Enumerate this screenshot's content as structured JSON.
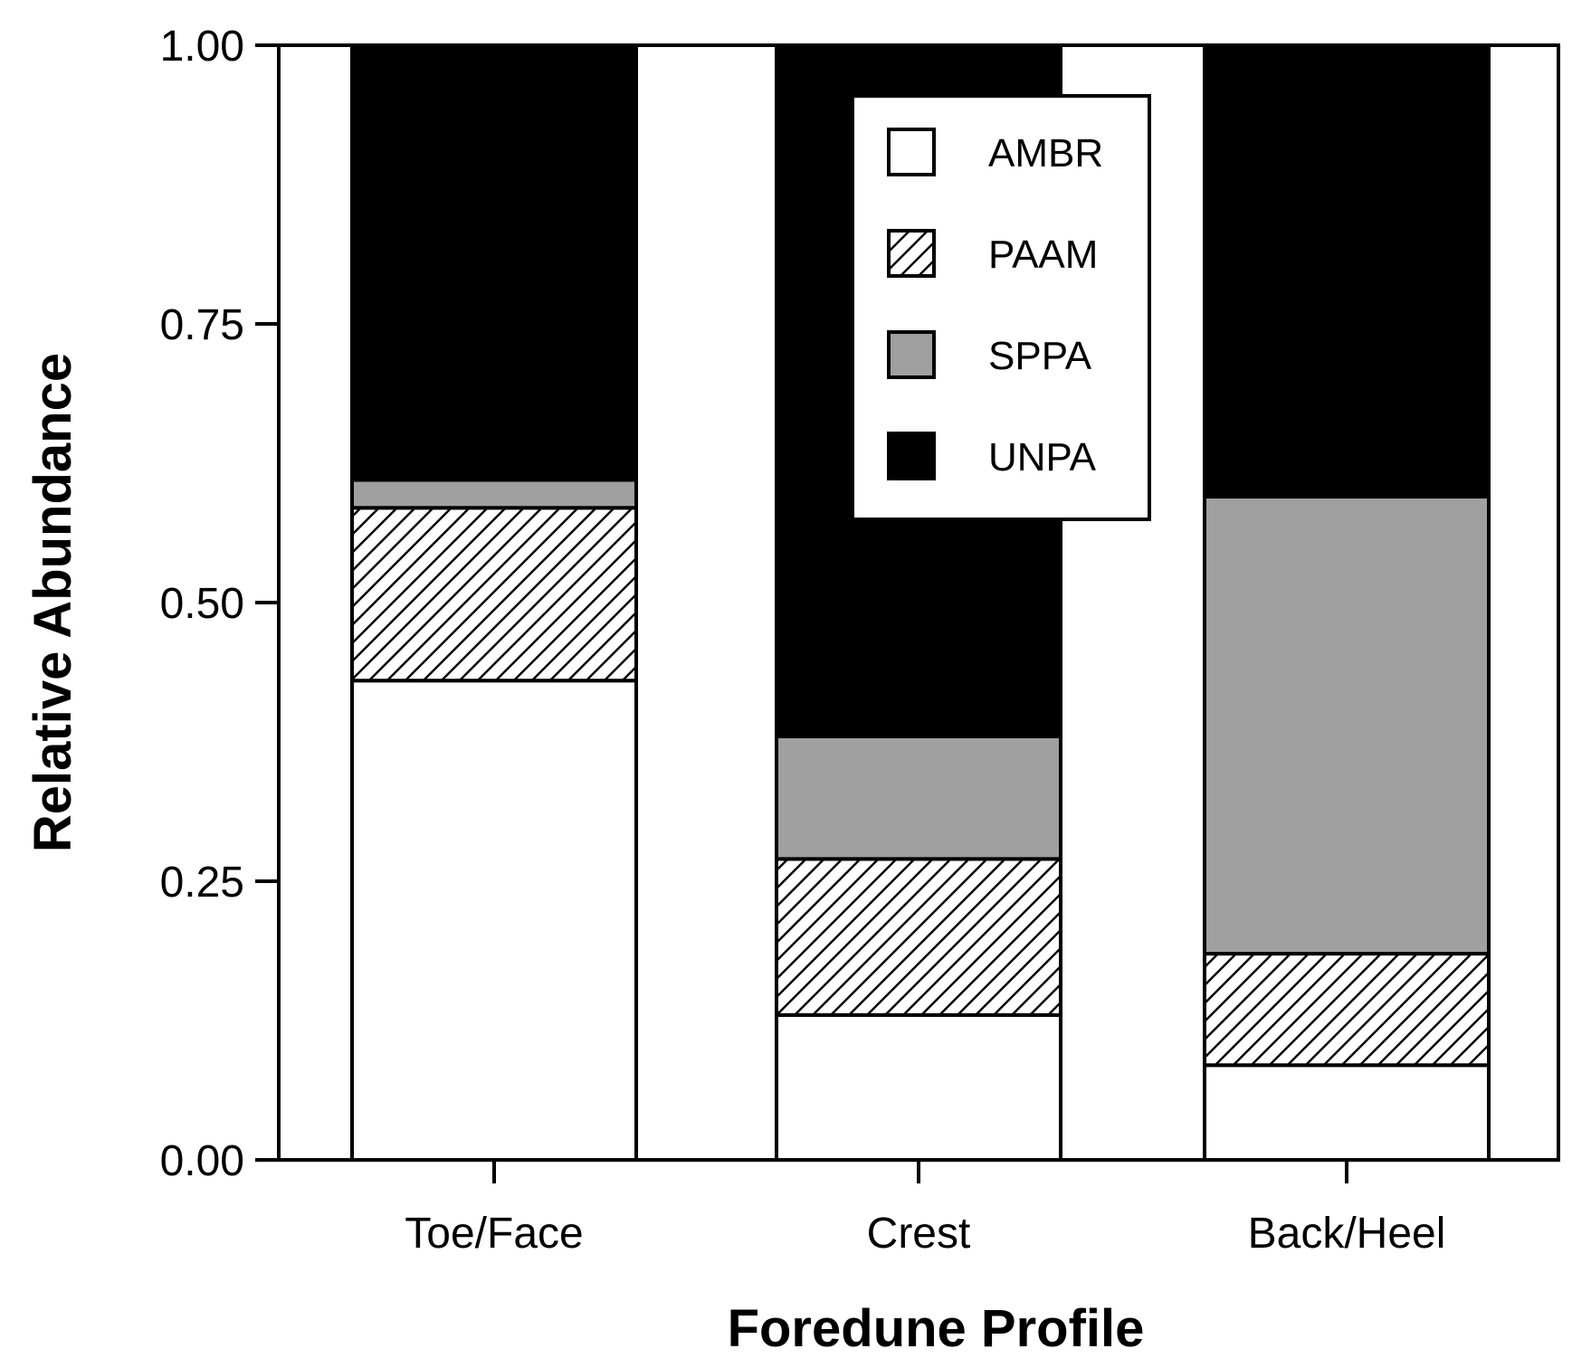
{
  "chart_data": {
    "type": "bar",
    "stacked": true,
    "title": "",
    "xlabel": "Foredune Profile",
    "ylabel": "Relative Abundance",
    "ylim": [
      0,
      1
    ],
    "yticks": [
      "0.00",
      "0.25",
      "0.50",
      "0.75",
      "1.00"
    ],
    "categories": [
      "Toe/Face",
      "Crest",
      "Back/Heel"
    ],
    "series": [
      {
        "name": "AMBR",
        "values": [
          0.43,
          0.13,
          0.085
        ],
        "fill": "#ffffff",
        "pattern": "none"
      },
      {
        "name": "PAAM",
        "values": [
          0.155,
          0.14,
          0.1
        ],
        "fill": "#ffffff",
        "pattern": "diagonal-hatch"
      },
      {
        "name": "SPPA",
        "values": [
          0.025,
          0.11,
          0.41
        ],
        "fill": "#a0a0a0",
        "pattern": "none"
      },
      {
        "name": "UNPA",
        "values": [
          0.39,
          0.62,
          0.405
        ],
        "fill": "#000000",
        "pattern": "none"
      }
    ],
    "legend": {
      "position": "top-center",
      "order": [
        "AMBR",
        "PAAM",
        "SPPA",
        "UNPA"
      ]
    },
    "grid": false
  }
}
